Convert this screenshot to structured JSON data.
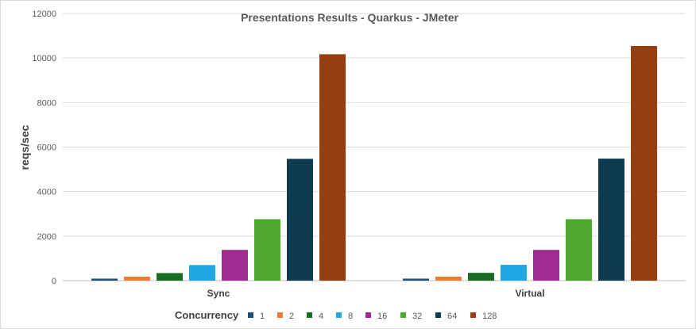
{
  "chart_data": {
    "type": "bar",
    "title": "Presentations Results - Quarkus - JMeter",
    "xlabel": "",
    "ylabel": "reqs/sec",
    "legend_title": "Concurrency",
    "legend_position": "bottom",
    "grid": true,
    "ylim": [
      0,
      12000
    ],
    "y_ticks": [
      0,
      2000,
      4000,
      6000,
      8000,
      10000,
      12000
    ],
    "categories": [
      "Sync",
      "Virtual"
    ],
    "series": [
      {
        "name": "1",
        "color": "#1F4E79",
        "values": [
          90,
          90
        ]
      },
      {
        "name": "2",
        "color": "#ED7D31",
        "values": [
          180,
          180
        ]
      },
      {
        "name": "4",
        "color": "#196B24",
        "values": [
          340,
          350
        ]
      },
      {
        "name": "8",
        "color": "#1EA7E1",
        "values": [
          700,
          710
        ]
      },
      {
        "name": "16",
        "color": "#A02B93",
        "values": [
          1380,
          1380
        ]
      },
      {
        "name": "32",
        "color": "#4EA72E",
        "values": [
          2760,
          2760
        ]
      },
      {
        "name": "64",
        "color": "#0E3A52",
        "values": [
          5470,
          5480
        ]
      },
      {
        "name": "128",
        "color": "#933F12",
        "values": [
          10170,
          10540
        ]
      }
    ]
  }
}
